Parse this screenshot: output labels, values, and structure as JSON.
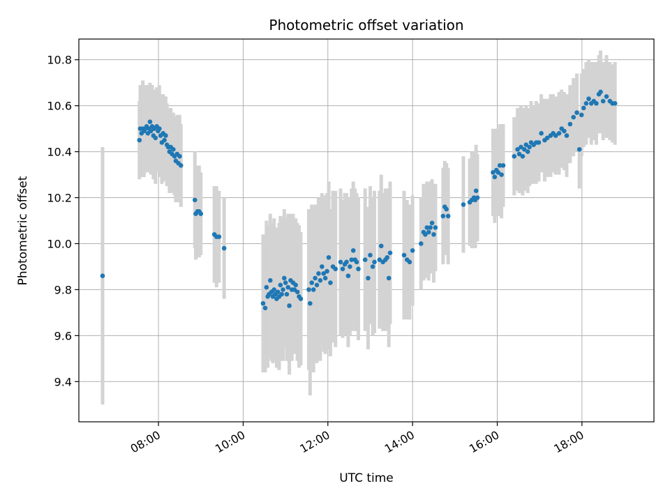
{
  "chart_data": {
    "type": "scatter",
    "title": "Photometric offset variation",
    "xlabel": "UTC time",
    "ylabel": "Photometric offset",
    "x_unit": "hours UTC",
    "xlim": [
      6.12,
      19.7
    ],
    "ylim": [
      9.225,
      10.89
    ],
    "grid": true,
    "x_ticks": [
      {
        "value": 8,
        "label": "08:00"
      },
      {
        "value": 10,
        "label": "10:00"
      },
      {
        "value": 12,
        "label": "12:00"
      },
      {
        "value": 14,
        "label": "14:00"
      },
      {
        "value": 16,
        "label": "16:00"
      },
      {
        "value": 18,
        "label": "18:00"
      }
    ],
    "y_ticks": [
      {
        "value": 9.4,
        "label": "9.4"
      },
      {
        "value": 9.6,
        "label": "9.6"
      },
      {
        "value": 9.8,
        "label": "9.8"
      },
      {
        "value": 10.0,
        "label": "10.0"
      },
      {
        "value": 10.2,
        "label": "10.2"
      },
      {
        "value": 10.4,
        "label": "10.4"
      },
      {
        "value": 10.6,
        "label": "10.6"
      },
      {
        "value": 10.8,
        "label": "10.8"
      }
    ],
    "colors": {
      "points": "#1f77b4",
      "errorbars": "#d3d3d3",
      "grid": "#b0b0b0"
    },
    "series": [
      {
        "points": [
          [
            6.68,
            9.86,
            0.56
          ],
          [
            7.55,
            10.45,
            0.17
          ],
          [
            7.57,
            10.5,
            0.19
          ],
          [
            7.6,
            10.48,
            0.19
          ],
          [
            7.63,
            10.5,
            0.21
          ],
          [
            7.66,
            10.49,
            0.2
          ],
          [
            7.69,
            10.5,
            0.19
          ],
          [
            7.72,
            10.51,
            0.18
          ],
          [
            7.75,
            10.48,
            0.17
          ],
          [
            7.78,
            10.5,
            0.18
          ],
          [
            7.8,
            10.53,
            0.17
          ],
          [
            7.82,
            10.49,
            0.19
          ],
          [
            7.85,
            10.51,
            0.18
          ],
          [
            7.88,
            10.47,
            0.19
          ],
          [
            7.9,
            10.5,
            0.17
          ],
          [
            7.93,
            10.46,
            0.2
          ],
          [
            7.96,
            10.51,
            0.17
          ],
          [
            7.99,
            10.49,
            0.18
          ],
          [
            8.02,
            10.5,
            0.19
          ],
          [
            8.05,
            10.47,
            0.18
          ],
          [
            8.08,
            10.44,
            0.18
          ],
          [
            8.11,
            10.48,
            0.17
          ],
          [
            8.14,
            10.45,
            0.18
          ],
          [
            8.17,
            10.47,
            0.17
          ],
          [
            8.2,
            10.43,
            0.18
          ],
          [
            8.23,
            10.42,
            0.17
          ],
          [
            8.26,
            10.4,
            0.18
          ],
          [
            8.29,
            10.42,
            0.17
          ],
          [
            8.32,
            10.39,
            0.17
          ],
          [
            8.35,
            10.41,
            0.16
          ],
          [
            8.38,
            10.38,
            0.17
          ],
          [
            8.41,
            10.36,
            0.18
          ],
          [
            8.44,
            10.39,
            0.17
          ],
          [
            8.47,
            10.35,
            0.17
          ],
          [
            8.5,
            10.38,
            0.18
          ],
          [
            8.53,
            10.34,
            0.18
          ],
          [
            8.86,
            10.19,
            0.21
          ],
          [
            8.88,
            10.13,
            0.2
          ],
          [
            8.92,
            10.14,
            0.2
          ],
          [
            8.96,
            10.14,
            0.2
          ],
          [
            9.0,
            10.13,
            0.18
          ],
          [
            9.32,
            10.04,
            0.21
          ],
          [
            9.37,
            10.03,
            0.22
          ],
          [
            9.43,
            10.03,
            0.2
          ],
          [
            9.55,
            9.98,
            0.22
          ],
          [
            10.47,
            9.74,
            0.3
          ],
          [
            10.52,
            9.72,
            0.28
          ],
          [
            10.55,
            9.81,
            0.29
          ],
          [
            10.58,
            9.77,
            0.31
          ],
          [
            10.61,
            9.78,
            0.28
          ],
          [
            10.64,
            9.84,
            0.29
          ],
          [
            10.67,
            9.79,
            0.3
          ],
          [
            10.7,
            9.77,
            0.29
          ],
          [
            10.73,
            9.8,
            0.31
          ],
          [
            10.76,
            9.78,
            0.29
          ],
          [
            10.79,
            9.76,
            0.3
          ],
          [
            10.82,
            9.79,
            0.28
          ],
          [
            10.85,
            9.77,
            0.32
          ],
          [
            10.88,
            9.82,
            0.3
          ],
          [
            10.91,
            9.78,
            0.29
          ],
          [
            10.94,
            9.8,
            0.31
          ],
          [
            10.97,
            9.85,
            0.3
          ],
          [
            11.0,
            9.83,
            0.28
          ],
          [
            11.03,
            9.78,
            0.29
          ],
          [
            11.06,
            9.81,
            0.32
          ],
          [
            11.09,
            9.73,
            0.3
          ],
          [
            11.12,
            9.84,
            0.29
          ],
          [
            11.15,
            9.8,
            0.31
          ],
          [
            11.18,
            9.83,
            0.3
          ],
          [
            11.21,
            9.8,
            0.28
          ],
          [
            11.24,
            9.82,
            0.29
          ],
          [
            11.28,
            9.79,
            0.3
          ],
          [
            11.32,
            9.77,
            0.31
          ],
          [
            11.36,
            9.76,
            0.29
          ],
          [
            11.55,
            9.8,
            0.35
          ],
          [
            11.58,
            9.74,
            0.4
          ],
          [
            11.62,
            9.83,
            0.34
          ],
          [
            11.66,
            9.8,
            0.36
          ],
          [
            11.7,
            9.85,
            0.32
          ],
          [
            11.74,
            9.82,
            0.34
          ],
          [
            11.78,
            9.87,
            0.33
          ],
          [
            11.82,
            9.84,
            0.35
          ],
          [
            11.86,
            9.9,
            0.32
          ],
          [
            11.9,
            9.87,
            0.34
          ],
          [
            11.94,
            9.85,
            0.33
          ],
          [
            11.98,
            9.88,
            0.34
          ],
          [
            12.02,
            9.94,
            0.33
          ],
          [
            12.06,
            9.83,
            0.32
          ],
          [
            12.12,
            9.9,
            0.33
          ],
          [
            12.18,
            9.89,
            0.34
          ],
          [
            12.3,
            9.92,
            0.32
          ],
          [
            12.35,
            9.89,
            0.3
          ],
          [
            12.4,
            9.91,
            0.31
          ],
          [
            12.44,
            9.92,
            0.3
          ],
          [
            12.48,
            9.86,
            0.31
          ],
          [
            12.52,
            9.9,
            0.3
          ],
          [
            12.56,
            9.93,
            0.31
          ],
          [
            12.6,
            9.97,
            0.3
          ],
          [
            12.64,
            9.93,
            0.31
          ],
          [
            12.68,
            9.92,
            0.3
          ],
          [
            12.72,
            9.89,
            0.31
          ],
          [
            12.88,
            9.93,
            0.31
          ],
          [
            12.95,
            9.85,
            0.31
          ],
          [
            13.0,
            9.95,
            0.3
          ],
          [
            13.06,
            9.9,
            0.3
          ],
          [
            13.1,
            9.92,
            0.31
          ],
          [
            13.22,
            9.93,
            0.3
          ],
          [
            13.26,
            9.99,
            0.31
          ],
          [
            13.3,
            9.92,
            0.3
          ],
          [
            13.36,
            9.93,
            0.31
          ],
          [
            13.4,
            9.94,
            0.3
          ],
          [
            13.44,
            9.85,
            0.3
          ],
          [
            13.47,
            9.96,
            0.31
          ],
          [
            13.8,
            9.95,
            0.28
          ],
          [
            13.87,
            9.93,
            0.26
          ],
          [
            13.93,
            9.92,
            0.25
          ],
          [
            14.0,
            9.97,
            0.24
          ],
          [
            14.2,
            10.0,
            0.2
          ],
          [
            14.26,
            10.05,
            0.21
          ],
          [
            14.3,
            10.04,
            0.19
          ],
          [
            14.34,
            10.07,
            0.2
          ],
          [
            14.38,
            10.05,
            0.21
          ],
          [
            14.42,
            10.07,
            0.2
          ],
          [
            14.46,
            10.09,
            0.19
          ],
          [
            14.5,
            10.04,
            0.21
          ],
          [
            14.54,
            10.07,
            0.19
          ],
          [
            14.72,
            10.12,
            0.21
          ],
          [
            14.76,
            10.16,
            0.2
          ],
          [
            14.8,
            10.15,
            0.2
          ],
          [
            14.84,
            10.12,
            0.21
          ],
          [
            15.2,
            10.17,
            0.21
          ],
          [
            15.35,
            10.18,
            0.19
          ],
          [
            15.4,
            10.19,
            0.21
          ],
          [
            15.45,
            10.2,
            0.2
          ],
          [
            15.48,
            10.19,
            0.21
          ],
          [
            15.5,
            10.23,
            0.2
          ],
          [
            15.53,
            10.2,
            0.19
          ],
          [
            15.9,
            10.31,
            0.19
          ],
          [
            15.94,
            10.29,
            0.2
          ],
          [
            15.98,
            10.32,
            0.18
          ],
          [
            16.02,
            10.31,
            0.19
          ],
          [
            16.06,
            10.34,
            0.18
          ],
          [
            16.1,
            10.3,
            0.19
          ],
          [
            16.14,
            10.34,
            0.18
          ],
          [
            16.4,
            10.38,
            0.17
          ],
          [
            16.48,
            10.41,
            0.18
          ],
          [
            16.52,
            10.39,
            0.17
          ],
          [
            16.56,
            10.42,
            0.18
          ],
          [
            16.6,
            10.38,
            0.17
          ],
          [
            16.64,
            10.41,
            0.18
          ],
          [
            16.68,
            10.43,
            0.17
          ],
          [
            16.72,
            10.4,
            0.18
          ],
          [
            16.76,
            10.42,
            0.17
          ],
          [
            16.8,
            10.44,
            0.18
          ],
          [
            16.86,
            10.43,
            0.17
          ],
          [
            16.92,
            10.44,
            0.18
          ],
          [
            16.98,
            10.44,
            0.17
          ],
          [
            17.04,
            10.48,
            0.17
          ],
          [
            17.12,
            10.45,
            0.18
          ],
          [
            17.18,
            10.46,
            0.17
          ],
          [
            17.26,
            10.47,
            0.18
          ],
          [
            17.32,
            10.48,
            0.17
          ],
          [
            17.38,
            10.47,
            0.17
          ],
          [
            17.46,
            10.48,
            0.18
          ],
          [
            17.52,
            10.5,
            0.17
          ],
          [
            17.58,
            10.49,
            0.17
          ],
          [
            17.64,
            10.47,
            0.18
          ],
          [
            17.72,
            10.52,
            0.17
          ],
          [
            17.8,
            10.55,
            0.17
          ],
          [
            17.88,
            10.57,
            0.17
          ],
          [
            17.94,
            10.41,
            0.17
          ],
          [
            17.99,
            10.56,
            0.18
          ],
          [
            18.04,
            10.59,
            0.17
          ],
          [
            18.1,
            10.61,
            0.18
          ],
          [
            18.16,
            10.63,
            0.17
          ],
          [
            18.22,
            10.61,
            0.18
          ],
          [
            18.28,
            10.62,
            0.17
          ],
          [
            18.34,
            10.61,
            0.18
          ],
          [
            18.4,
            10.65,
            0.17
          ],
          [
            18.44,
            10.66,
            0.18
          ],
          [
            18.5,
            10.62,
            0.17
          ],
          [
            18.58,
            10.64,
            0.18
          ],
          [
            18.66,
            10.62,
            0.17
          ],
          [
            18.72,
            10.61,
            0.17
          ],
          [
            18.78,
            10.61,
            0.18
          ]
        ]
      }
    ]
  }
}
